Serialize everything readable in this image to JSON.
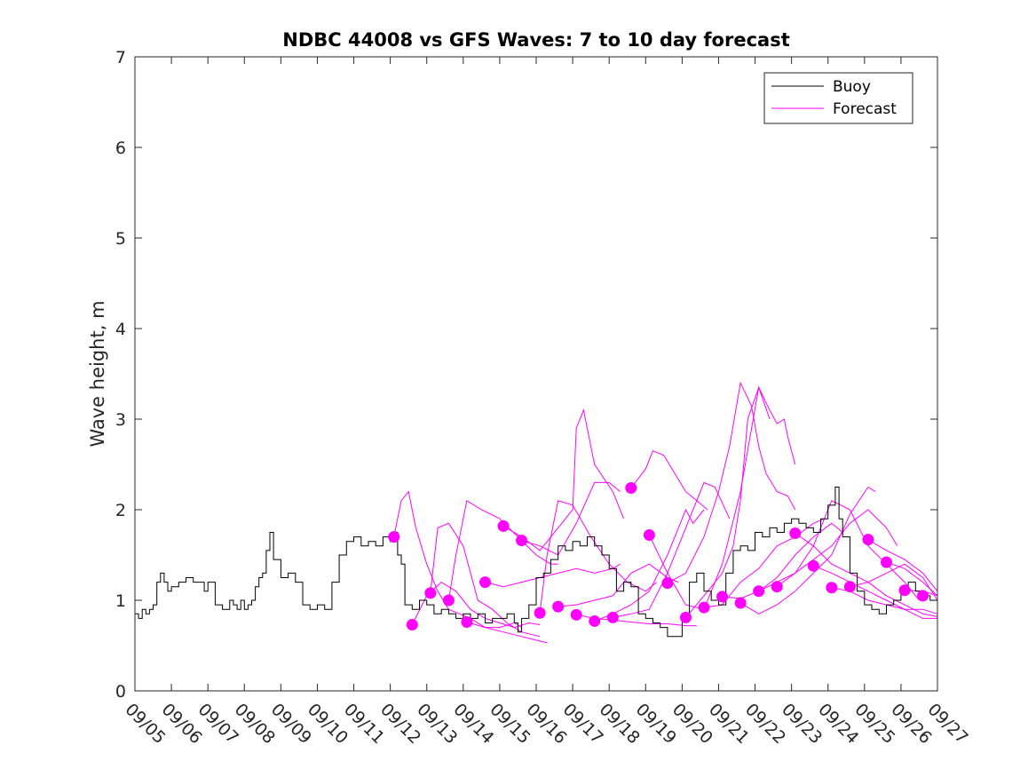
{
  "chart_data": {
    "type": "line",
    "title": "NDBC 44008 vs GFS Waves: 7 to 10 day forecast",
    "xlabel": "",
    "ylabel": "Wave height, m",
    "xlim": [
      0,
      22
    ],
    "ylim": [
      0,
      7
    ],
    "yticks": [
      0,
      1,
      2,
      3,
      4,
      5,
      6,
      7
    ],
    "categories": [
      "09/05",
      "09/06",
      "09/07",
      "09/08",
      "09/09",
      "09/10",
      "09/11",
      "09/12",
      "09/13",
      "09/14",
      "09/15",
      "09/16",
      "09/17",
      "09/18",
      "09/19",
      "09/20",
      "09/21",
      "09/22",
      "09/23",
      "09/24",
      "09/25",
      "09/26",
      "09/27"
    ],
    "colors": {
      "buoy": "#000000",
      "forecast": "#ff00ff"
    },
    "legend": {
      "position": "top-right",
      "entries": [
        "Buoy",
        "Forecast"
      ]
    },
    "buoy": {
      "name": "Buoy",
      "x": [
        0,
        0.1,
        0.2,
        0.3,
        0.4,
        0.5,
        0.6,
        0.7,
        0.8,
        0.9,
        1.0,
        1.2,
        1.4,
        1.6,
        1.8,
        1.9,
        2.0,
        2.2,
        2.4,
        2.6,
        2.7,
        2.8,
        2.9,
        3.0,
        3.1,
        3.2,
        3.3,
        3.4,
        3.5,
        3.6,
        3.7,
        3.8,
        4.0,
        4.2,
        4.4,
        4.6,
        4.8,
        5.0,
        5.2,
        5.4,
        5.6,
        5.8,
        6.0,
        6.2,
        6.4,
        6.6,
        6.8,
        7.0,
        7.1,
        7.2,
        7.3,
        7.4,
        7.6,
        7.8,
        8.0,
        8.2,
        8.4,
        8.6,
        8.8,
        9.0,
        9.2,
        9.4,
        9.6,
        9.8,
        10.0,
        10.2,
        10.4,
        10.5,
        10.6,
        10.8,
        11.0,
        11.2,
        11.4,
        11.6,
        11.8,
        12.0,
        12.2,
        12.4,
        12.6,
        12.8,
        13.0,
        13.2,
        13.4,
        13.6,
        13.8,
        14.0,
        14.2,
        14.4,
        14.6,
        14.8,
        15.0,
        15.2,
        15.4,
        15.6,
        15.8,
        16.0,
        16.2,
        16.4,
        16.6,
        16.8,
        17.0,
        17.2,
        17.4,
        17.6,
        17.8,
        18.0,
        18.2,
        18.4,
        18.6,
        18.8,
        19.0,
        19.2,
        19.3,
        19.4,
        19.6,
        19.8,
        20.0,
        20.2,
        20.4,
        20.6,
        20.8,
        21.0,
        21.2,
        21.4,
        21.6,
        21.8,
        22.0
      ],
      "values": [
        0.85,
        0.8,
        0.9,
        0.85,
        0.9,
        0.95,
        1.2,
        1.3,
        1.2,
        1.1,
        1.15,
        1.2,
        1.25,
        1.2,
        1.2,
        1.1,
        1.2,
        0.95,
        0.9,
        1.0,
        0.95,
        0.9,
        1.0,
        0.9,
        0.95,
        1.0,
        1.15,
        1.25,
        1.3,
        1.55,
        1.75,
        1.45,
        1.25,
        1.3,
        1.2,
        0.95,
        0.9,
        0.95,
        0.9,
        1.2,
        1.5,
        1.65,
        1.7,
        1.6,
        1.65,
        1.6,
        1.7,
        1.65,
        1.75,
        1.5,
        1.4,
        0.95,
        0.9,
        1.0,
        0.95,
        0.85,
        0.9,
        0.85,
        0.8,
        0.85,
        0.8,
        0.85,
        0.75,
        0.8,
        0.8,
        0.85,
        0.75,
        0.65,
        0.8,
        0.95,
        1.25,
        1.3,
        1.45,
        1.6,
        1.55,
        1.65,
        1.6,
        1.7,
        1.6,
        1.5,
        1.35,
        1.1,
        1.2,
        1.15,
        0.85,
        0.8,
        0.75,
        0.7,
        0.6,
        0.6,
        0.85,
        1.2,
        1.3,
        1.1,
        1.0,
        0.95,
        1.3,
        1.55,
        1.6,
        1.55,
        1.75,
        1.7,
        1.8,
        1.75,
        1.85,
        1.9,
        1.85,
        1.8,
        1.75,
        1.9,
        2.05,
        2.25,
        1.9,
        1.7,
        1.3,
        1.1,
        0.95,
        0.9,
        0.85,
        0.95,
        1.0,
        1.15,
        1.2,
        1.1,
        1.05,
        1.0,
        1.0
      ]
    },
    "forecast": {
      "name": "Forecast",
      "markers": {
        "x": [
          7.1,
          7.6,
          8.1,
          8.6,
          9.1,
          9.6,
          10.1,
          10.6,
          11.1,
          11.6,
          12.1,
          12.6,
          13.1,
          13.6,
          14.1,
          14.6,
          15.1,
          15.6,
          16.1,
          16.6,
          17.1,
          17.6,
          18.1,
          18.6,
          19.1,
          19.6,
          20.1,
          20.6,
          21.1,
          21.6
        ],
        "values": [
          1.7,
          0.73,
          1.08,
          1.0,
          0.76,
          1.2,
          1.82,
          1.66,
          0.86,
          0.93,
          0.84,
          0.77,
          0.81,
          2.24,
          1.72,
          1.19,
          0.81,
          0.92,
          1.04,
          0.97,
          1.1,
          1.15,
          1.74,
          1.38,
          1.14,
          1.15,
          1.67,
          1.42,
          1.11,
          1.05
        ]
      },
      "runs": [
        {
          "x": [
            7.1,
            7.3,
            7.5,
            7.7,
            8.0,
            8.3,
            8.6,
            8.9,
            9.2,
            9.6,
            10.0,
            10.4,
            10.6
          ],
          "values": [
            1.7,
            2.1,
            2.2,
            1.8,
            1.4,
            1.1,
            0.9,
            0.85,
            0.8,
            0.7,
            0.7,
            0.75,
            0.7
          ]
        },
        {
          "x": [
            7.6,
            8.0,
            8.4,
            8.8,
            9.2,
            9.6,
            10.0,
            10.4,
            10.8,
            11.1
          ],
          "values": [
            0.73,
            1.05,
            1.2,
            1.1,
            0.9,
            0.8,
            0.75,
            0.7,
            0.75,
            0.73
          ]
        },
        {
          "x": [
            8.1,
            8.3,
            8.6,
            9.0,
            9.4,
            9.8,
            10.2,
            10.6,
            11.1
          ],
          "values": [
            1.08,
            1.8,
            1.85,
            1.6,
            1.0,
            0.9,
            0.75,
            0.65,
            0.6
          ]
        },
        {
          "x": [
            8.6,
            8.8,
            9.1,
            9.5,
            10.0,
            10.5,
            11.0,
            11.4,
            11.6
          ],
          "values": [
            1.0,
            1.5,
            2.1,
            2.0,
            1.9,
            1.7,
            1.5,
            1.4,
            1.4
          ]
        },
        {
          "x": [
            9.1,
            9.6,
            10.1,
            10.6,
            11.1,
            11.3
          ],
          "values": [
            0.76,
            0.7,
            0.65,
            0.6,
            0.55,
            0.53
          ]
        },
        {
          "x": [
            9.6,
            10.1,
            10.6,
            11.1,
            11.6,
            12.1,
            12.6,
            13.1,
            13.3
          ],
          "values": [
            1.2,
            1.15,
            1.2,
            1.25,
            1.3,
            1.35,
            1.3,
            1.35,
            1.4
          ]
        },
        {
          "x": [
            10.1,
            10.6,
            11.1,
            11.6,
            12.0,
            12.1,
            12.3,
            12.6,
            13.1,
            13.4
          ],
          "values": [
            1.82,
            1.7,
            1.55,
            1.8,
            2.0,
            2.9,
            3.1,
            2.5,
            2.2,
            1.9
          ]
        },
        {
          "x": [
            10.6,
            11.1,
            11.6,
            12.1,
            12.6,
            13.0,
            13.3
          ],
          "values": [
            1.66,
            1.6,
            1.5,
            1.85,
            2.3,
            2.3,
            2.2
          ]
        },
        {
          "x": [
            11.1,
            11.3,
            11.6,
            12.0,
            12.5,
            13.0,
            13.5,
            14.0,
            14.3
          ],
          "values": [
            0.86,
            1.5,
            2.1,
            2.05,
            1.7,
            1.4,
            1.2,
            1.1,
            1.2
          ]
        },
        {
          "x": [
            11.6,
            12.1,
            12.6,
            13.1,
            13.6,
            14.1,
            14.6,
            14.9
          ],
          "values": [
            0.93,
            0.95,
            1.0,
            1.05,
            1.3,
            1.4,
            1.25,
            1.2
          ]
        },
        {
          "x": [
            12.1,
            12.6,
            13.1,
            13.6,
            14.1,
            14.6,
            15.1,
            15.4
          ],
          "values": [
            0.84,
            0.8,
            0.78,
            0.76,
            0.74,
            0.74,
            0.72,
            0.72
          ]
        },
        {
          "x": [
            12.6,
            13.1,
            13.6,
            14.1,
            14.6,
            15.1,
            15.3,
            15.6
          ],
          "values": [
            0.77,
            0.85,
            0.95,
            1.1,
            1.5,
            2.0,
            1.85,
            2.0
          ]
        },
        {
          "x": [
            13.1,
            13.6,
            14.1,
            14.6,
            15.1,
            15.6,
            15.9,
            16.3
          ],
          "values": [
            0.81,
            0.85,
            0.9,
            1.3,
            1.8,
            2.3,
            2.25,
            1.9
          ]
        },
        {
          "x": [
            13.6,
            14.0,
            14.2,
            14.5,
            14.8,
            15.1,
            15.4,
            15.7
          ],
          "values": [
            2.24,
            2.45,
            2.65,
            2.6,
            2.4,
            2.2,
            2.1,
            2.0
          ]
        },
        {
          "x": [
            14.1,
            14.6,
            15.1,
            15.6,
            16.1,
            16.6,
            17.1,
            17.4
          ],
          "values": [
            1.72,
            1.3,
            0.95,
            0.9,
            1.4,
            2.2,
            3.35,
            3.0
          ]
        },
        {
          "x": [
            14.6,
            15.1,
            15.6,
            16.0,
            16.3,
            16.6,
            16.9,
            17.1,
            17.3,
            17.6,
            17.9,
            18.1
          ],
          "values": [
            1.19,
            1.3,
            1.7,
            2.2,
            2.7,
            3.4,
            3.15,
            2.7,
            2.4,
            2.2,
            2.15,
            2.0
          ]
        },
        {
          "x": [
            15.1,
            15.6,
            16.1,
            16.4,
            16.6,
            16.8,
            17.1,
            17.4,
            17.6,
            17.8,
            17.9,
            18.1
          ],
          "values": [
            0.81,
            1.05,
            1.3,
            1.6,
            2.1,
            3.0,
            3.35,
            3.1,
            2.95,
            3.0,
            2.8,
            2.5
          ]
        },
        {
          "x": [
            15.6,
            16.1,
            16.6,
            17.1,
            17.6,
            18.1,
            18.6,
            18.9
          ],
          "values": [
            0.92,
            0.95,
            1.2,
            1.35,
            1.6,
            1.7,
            1.85,
            1.9
          ]
        },
        {
          "x": [
            16.1,
            16.6,
            17.1,
            17.6,
            18.1,
            18.6,
            19.1,
            19.4
          ],
          "values": [
            1.04,
            1.02,
            1.1,
            1.25,
            1.5,
            1.7,
            1.85,
            1.75
          ]
        },
        {
          "x": [
            16.6,
            17.1,
            17.6,
            18.1,
            18.6,
            19.1,
            19.6,
            20.1,
            20.3
          ],
          "values": [
            0.97,
            0.85,
            0.95,
            1.1,
            1.3,
            1.5,
            1.95,
            2.25,
            2.2
          ]
        },
        {
          "x": [
            17.1,
            17.6,
            18.1,
            18.6,
            19.1,
            19.6,
            20.1,
            20.6,
            20.9
          ],
          "values": [
            1.1,
            1.2,
            1.3,
            1.45,
            1.6,
            1.85,
            2.0,
            1.8,
            1.6
          ]
        },
        {
          "x": [
            17.6,
            18.1,
            18.6,
            19.1,
            19.6,
            20.1,
            20.6,
            21.1,
            21.5
          ],
          "values": [
            1.15,
            1.3,
            1.6,
            2.1,
            2.0,
            1.6,
            1.4,
            1.2,
            1.0
          ]
        },
        {
          "x": [
            18.1,
            18.6,
            19.1,
            19.6,
            20.1,
            20.6,
            21.1,
            21.6,
            22.0
          ],
          "values": [
            1.74,
            1.6,
            1.4,
            1.3,
            1.2,
            1.05,
            0.95,
            0.85,
            0.82
          ]
        },
        {
          "x": [
            18.6,
            19.1,
            19.6,
            20.1,
            20.6,
            21.1,
            21.6,
            22.0
          ],
          "values": [
            1.38,
            1.3,
            1.2,
            1.1,
            1.0,
            0.9,
            0.8,
            0.8
          ]
        },
        {
          "x": [
            19.1,
            19.6,
            20.1,
            20.6,
            21.1,
            21.6,
            22.0
          ],
          "values": [
            1.14,
            1.1,
            1.0,
            0.95,
            0.9,
            0.9,
            0.85
          ]
        },
        {
          "x": [
            19.6,
            20.1,
            20.6,
            21.1,
            21.6,
            22.0
          ],
          "values": [
            1.15,
            1.2,
            1.3,
            1.4,
            1.25,
            1.0
          ]
        },
        {
          "x": [
            20.1,
            20.6,
            21.1,
            21.6,
            22.0
          ],
          "values": [
            1.67,
            1.55,
            1.45,
            1.3,
            1.1
          ]
        },
        {
          "x": [
            20.6,
            21.1,
            21.6,
            22.0
          ],
          "values": [
            1.42,
            1.35,
            1.2,
            1.05
          ]
        },
        {
          "x": [
            21.1,
            21.6,
            22.0
          ],
          "values": [
            1.11,
            1.1,
            1.05
          ]
        }
      ]
    }
  }
}
